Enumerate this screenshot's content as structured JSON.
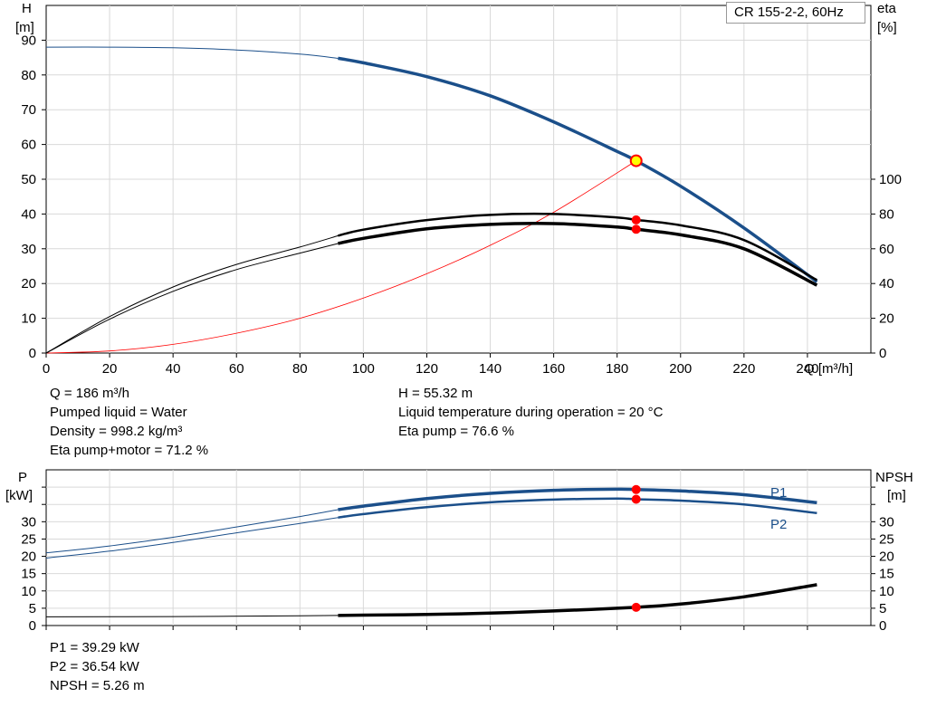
{
  "title": "CR 155-2-2, 60Hz",
  "colors": {
    "head": "#1b4f8a",
    "efficiency": "#000000",
    "system": "#ff0000",
    "power": "#1b4f8a",
    "npsh": "#000000",
    "marker": "#ff0000",
    "op_marker": "#ffff00"
  },
  "info_top_left": [
    "Q = 186 m³/h",
    "Pumped liquid = Water",
    "Density = 998.2 kg/m³",
    "Eta pump+motor = 71.2 %"
  ],
  "info_top_right": [
    "H = 55.32 m",
    "Liquid temperature during operation = 20 °C",
    "Eta pump = 76.6 %"
  ],
  "info_bottom": [
    "P1 = 39.29 kW",
    "P2 = 36.54 kW",
    "NPSH = 5.26 m"
  ],
  "chart_data": [
    {
      "type": "line",
      "name": "head-efficiency",
      "x_label": "Q [m³/h]",
      "y_label_left": [
        "H",
        "[m]"
      ],
      "y_label_right": [
        "eta",
        "[%]"
      ],
      "xlim": [
        0,
        260
      ],
      "ylim_left": [
        0,
        100
      ],
      "ylim_right": [
        0,
        200
      ],
      "x_ticks": [
        0,
        20,
        40,
        60,
        80,
        100,
        120,
        140,
        160,
        180,
        200,
        220,
        240
      ],
      "y_ticks_left": [
        0,
        10,
        20,
        30,
        40,
        50,
        60,
        70,
        80,
        90
      ],
      "y_ticks_right": [
        0,
        20,
        40,
        60,
        80,
        100
      ],
      "grid": true,
      "operating_point": {
        "Q": 186,
        "H": 55.32,
        "eta_pump": 76.6,
        "eta_total": 71.2
      },
      "series": [
        {
          "axis": "left",
          "x": [
            0,
            20,
            40,
            60,
            80,
            92,
            100,
            120,
            140,
            160,
            180,
            186,
            200,
            220,
            243
          ],
          "y": [
            88,
            88,
            87.8,
            87.2,
            86,
            84.8,
            83.5,
            79.5,
            74,
            66.5,
            58,
            55.3,
            48,
            36,
            20.5
          ]
        },
        {
          "axis": "right",
          "x": [
            0,
            20,
            40,
            60,
            80,
            92,
            100,
            120,
            140,
            160,
            180,
            186,
            200,
            220,
            243
          ],
          "y": [
            0,
            21,
            38,
            51,
            61,
            67.5,
            71,
            76.5,
            79.5,
            80,
            78,
            76.6,
            73.5,
            65,
            42
          ]
        },
        {
          "axis": "right",
          "x": [
            0,
            20,
            40,
            60,
            80,
            92,
            100,
            120,
            140,
            160,
            180,
            186,
            200,
            220,
            243
          ],
          "y": [
            0,
            19.5,
            35.5,
            48,
            57.5,
            63,
            66,
            71.5,
            74,
            74.5,
            72.5,
            71.2,
            68,
            60,
            39
          ]
        },
        {
          "axis": "left",
          "x": [
            0,
            20,
            40,
            60,
            80,
            100,
            120,
            140,
            160,
            186
          ],
          "y": [
            0,
            0.6,
            2.5,
            5.7,
            10,
            15.8,
            22.8,
            31,
            40.5,
            55.3
          ]
        }
      ]
    },
    {
      "type": "line",
      "name": "power-npsh",
      "y_label_left": [
        "P",
        "[kW]"
      ],
      "y_label_right": [
        "NPSH",
        "[m]"
      ],
      "xlim": [
        0,
        260
      ],
      "ylim_left": [
        0,
        45
      ],
      "ylim_right": [
        0,
        45
      ],
      "y_ticks_left": [
        0,
        5,
        10,
        15,
        20,
        25,
        30
      ],
      "y_ticks_right": [
        0,
        5,
        10,
        15,
        20,
        25,
        30
      ],
      "grid": true,
      "series": [
        {
          "name": "P1",
          "axis": "left",
          "x": [
            0,
            20,
            40,
            60,
            80,
            92,
            100,
            120,
            140,
            160,
            180,
            186,
            200,
            220,
            243
          ],
          "y": [
            21,
            23,
            25.5,
            28.5,
            31.5,
            33.5,
            34.5,
            36.7,
            38.2,
            39.1,
            39.4,
            39.3,
            38.9,
            37.8,
            35.5
          ]
        },
        {
          "name": "P2",
          "axis": "left",
          "x": [
            0,
            20,
            40,
            60,
            80,
            92,
            100,
            120,
            140,
            160,
            180,
            186,
            200,
            220,
            243
          ],
          "y": [
            19.5,
            21.5,
            24,
            26.8,
            29.5,
            31.2,
            32.2,
            34.2,
            35.6,
            36.4,
            36.7,
            36.5,
            36.1,
            35,
            32.5
          ]
        },
        {
          "name": "NPSH",
          "axis": "right",
          "x": [
            0,
            40,
            80,
            92,
            100,
            120,
            140,
            160,
            186,
            200,
            220,
            243
          ],
          "y": [
            2.5,
            2.6,
            2.8,
            2.9,
            3,
            3.2,
            3.6,
            4.2,
            5.26,
            6.2,
            8.3,
            11.8
          ]
        }
      ]
    }
  ]
}
